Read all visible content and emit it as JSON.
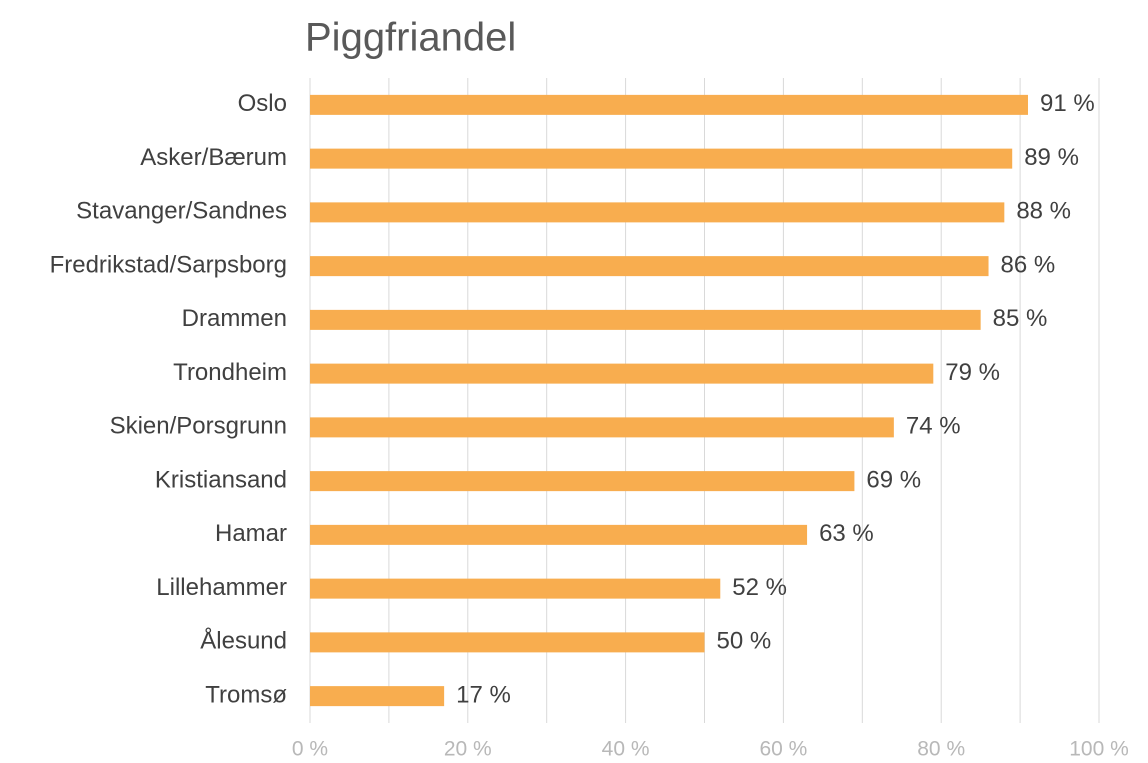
{
  "chart_data": {
    "type": "hbar",
    "title": "Piggfriandel",
    "categories": [
      "Oslo",
      "Asker/Bærum",
      "Stavanger/Sandnes",
      "Fredrikstad/Sarpsborg",
      "Drammen",
      "Trondheim",
      "Skien/Porsgrunn",
      "Kristiansand",
      "Hamar",
      "Lillehammer",
      "Ålesund",
      "Tromsø"
    ],
    "values": [
      91,
      89,
      88,
      86,
      85,
      79,
      74,
      69,
      63,
      52,
      50,
      17
    ],
    "value_labels": [
      "91 %",
      "89 %",
      "88 %",
      "86 %",
      "85 %",
      "79 %",
      "74 %",
      "69 %",
      "63 %",
      "52 %",
      "50 %",
      "17 %"
    ],
    "color": "#f8ad4f",
    "xlim": [
      0,
      100
    ],
    "xticks": [
      {
        "value": 0,
        "label": "0 %"
      },
      {
        "value": 20,
        "label": "20 %"
      },
      {
        "value": 40,
        "label": "40 %"
      },
      {
        "value": 60,
        "label": "60 %"
      },
      {
        "value": 80,
        "label": "80 %"
      },
      {
        "value": 100,
        "label": "100 %"
      }
    ],
    "minor_xticks": [
      10,
      30,
      50,
      70,
      90
    ],
    "grid": true
  }
}
